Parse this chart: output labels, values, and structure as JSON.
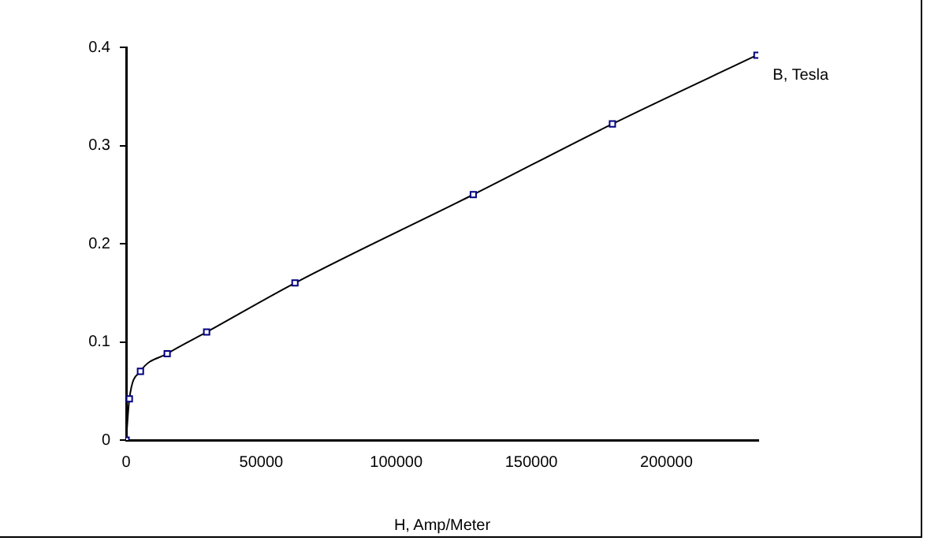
{
  "chart_data": {
    "type": "line",
    "xlabel": "H, Amp/Meter",
    "x": [
      0,
      1200,
      5300,
      15200,
      29800,
      62500,
      128500,
      180000,
      233500
    ],
    "series": [
      {
        "name": "B, Tesla",
        "color": "#000080",
        "values": [
          0,
          0.042,
          0.07,
          0.088,
          0.11,
          0.16,
          0.25,
          0.322,
          0.392
        ]
      }
    ],
    "xlim": [
      0,
      234000
    ],
    "xticks": [
      0,
      50000,
      100000,
      150000,
      200000
    ],
    "ylim": [
      0,
      0.4
    ],
    "yticks": [
      0,
      0.1,
      0.2,
      0.3,
      0.4
    ],
    "grid": false,
    "legend": false,
    "marker": "square",
    "line_style": "solid"
  }
}
